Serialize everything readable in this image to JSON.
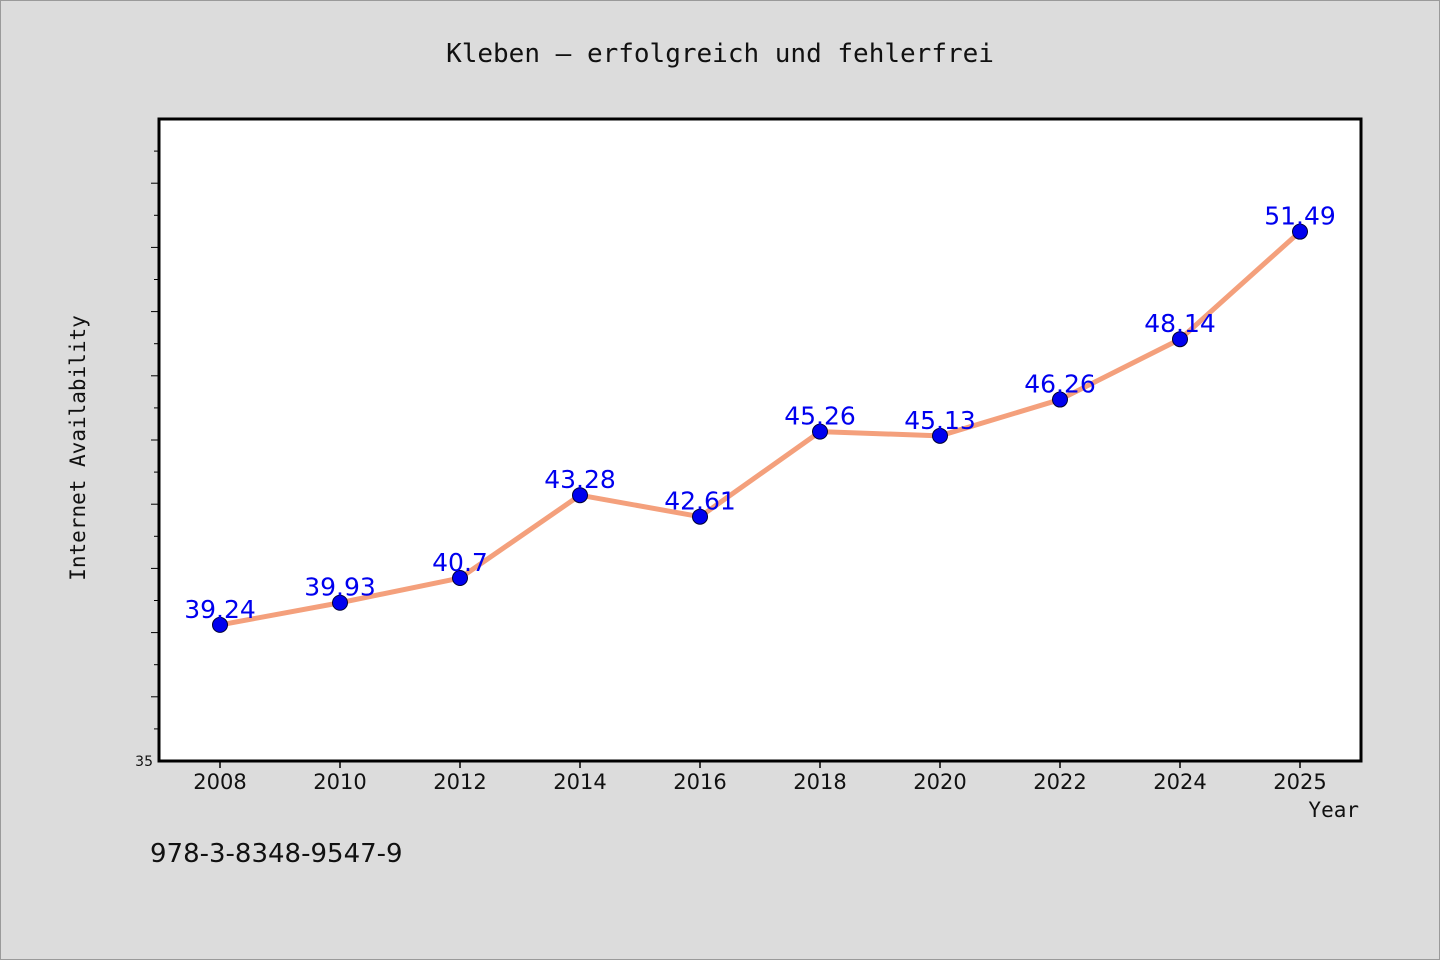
{
  "chart_data": {
    "type": "line",
    "title": "Kleben – erfolgreich und fehlerfrei",
    "xlabel": "Year",
    "ylabel": "Internet Availability",
    "x": [
      "2008",
      "2010",
      "2012",
      "2014",
      "2016",
      "2018",
      "2020",
      "2022",
      "2024",
      "2025"
    ],
    "series": [
      {
        "values": [
          39.24,
          39.93,
          40.7,
          43.28,
          42.61,
          45.26,
          45.13,
          46.26,
          48.14,
          51.49
        ],
        "labels": [
          "39.24",
          "39.93",
          "40.7",
          "43.28",
          "42.61",
          "45.26",
          "45.13",
          "46.26",
          "48.14",
          "51.49"
        ],
        "line_color": "#f4a07c",
        "marker_color": "#0000ee",
        "label_color": "#0000ee"
      }
    ],
    "ylim": [
      35,
      55
    ],
    "y_tick_labels": [
      "35"
    ],
    "grid": false,
    "legend": "none",
    "plot_background": "#ffffff",
    "figure_background": "#dcdcdc"
  },
  "footer": {
    "isbn": "978-3-8348-9547-9"
  }
}
